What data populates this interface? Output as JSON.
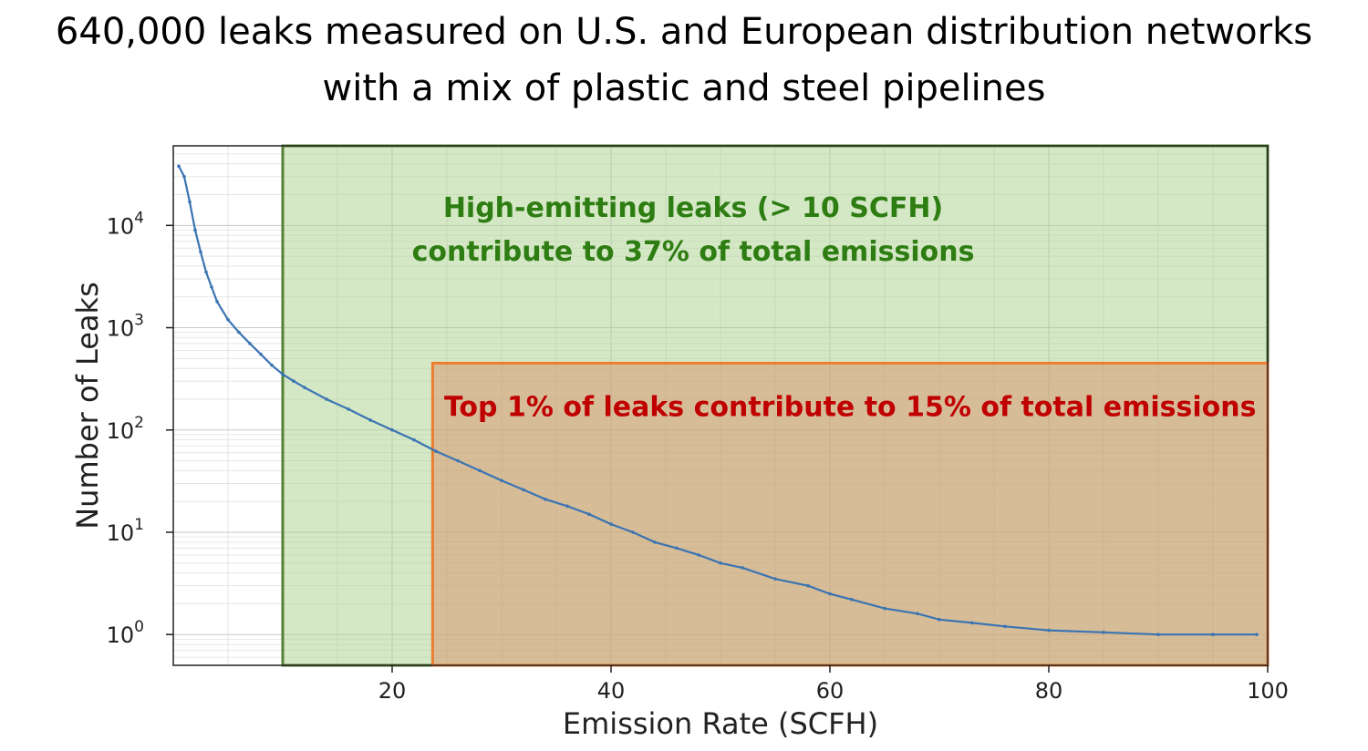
{
  "chart_data": {
    "type": "line",
    "title_lines": [
      "640,000 leaks measured on U.S. and European distribution networks",
      "with a mix of plastic and steel pipelines"
    ],
    "xlabel": "Emission Rate (SCFH)",
    "ylabel": "Number of Leaks",
    "xlim": [
      0,
      100
    ],
    "ylim": [
      0.5,
      60000
    ],
    "yscale": "log",
    "x_ticks": [
      20,
      40,
      60,
      80,
      100
    ],
    "y_ticks": [
      {
        "value": 1,
        "base": "10",
        "exp": "0"
      },
      {
        "value": 10,
        "base": "10",
        "exp": "1"
      },
      {
        "value": 100,
        "base": "10",
        "exp": "2"
      },
      {
        "value": 1000,
        "base": "10",
        "exp": "3"
      },
      {
        "value": 10000,
        "base": "10",
        "exp": "4"
      }
    ],
    "grid": true,
    "series": [
      {
        "color": "#3a74b2",
        "x": [
          0.5,
          1.0,
          1.5,
          2.0,
          2.5,
          3.0,
          3.5,
          4.0,
          5.0,
          6.0,
          7.0,
          8.0,
          9.0,
          10.0,
          11.0,
          12.0,
          14.0,
          16.0,
          18.0,
          20.0,
          22.0,
          24.0,
          26.0,
          28.0,
          30.0,
          32.0,
          34.0,
          36.0,
          38.0,
          40.0,
          42.0,
          44.0,
          46.0,
          48.0,
          50.0,
          52.0,
          55.0,
          58.0,
          60.0,
          62.0,
          65.0,
          68.0,
          70.0,
          73.0,
          76.0,
          80.0,
          85.0,
          90.0,
          95.0,
          99.0
        ],
        "y": [
          38000,
          30000,
          17000,
          9000,
          5500,
          3500,
          2500,
          1800,
          1200,
          900,
          700,
          550,
          430,
          350,
          300,
          260,
          200,
          160,
          125,
          100,
          80,
          62,
          50,
          40,
          32,
          26,
          21,
          18,
          15,
          12,
          10,
          8,
          7,
          6,
          5,
          4.5,
          3.5,
          3,
          2.5,
          2.2,
          1.8,
          1.6,
          1.4,
          1.3,
          1.2,
          1.1,
          1.05,
          1.0,
          1.0,
          1.0
        ]
      }
    ],
    "regions": [
      {
        "label": "High-emitting leaks (> 10 SCFH)",
        "label2": "contribute to 37% of total emissions",
        "x_start": 10,
        "x_end": 100,
        "y_top": 60000,
        "fill": "#a9d18e",
        "stroke": "#548235",
        "text_color": "#2e7d12"
      },
      {
        "label": "Top 1% of leaks contribute to 15% of total emissions",
        "x_start": 23.7,
        "x_end": 100,
        "y_top": 450,
        "fill": "#d9906a",
        "stroke": "#ed7d31",
        "text_color": "#c00000"
      }
    ]
  }
}
